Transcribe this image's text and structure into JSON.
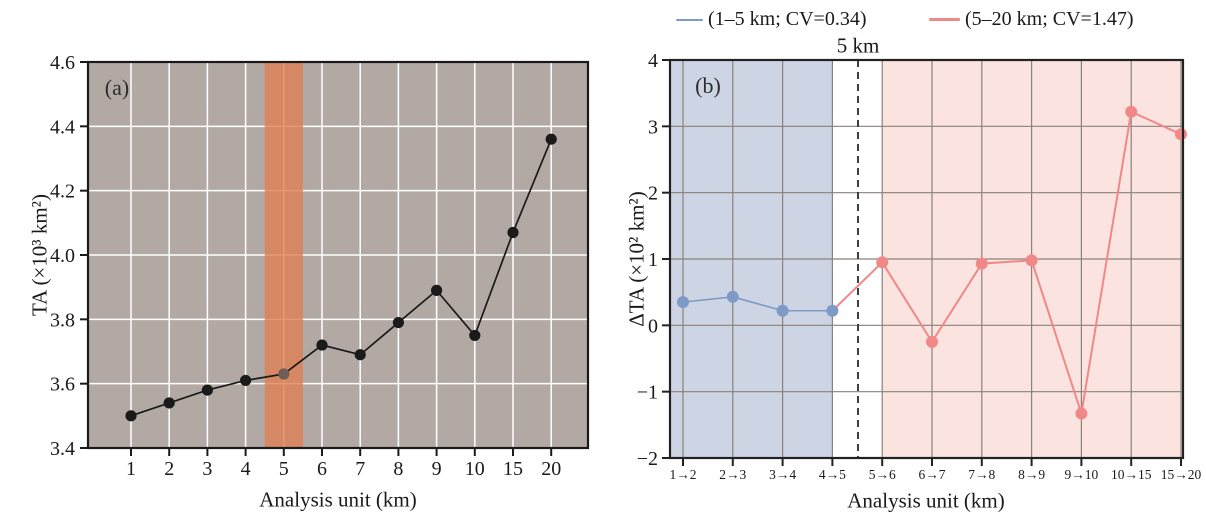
{
  "figure_caption": "",
  "chart_data": [
    {
      "id": "a",
      "type": "line",
      "panel_label": "(a)",
      "xlabel": "Analysis unit (km)",
      "ylabel": "TA (×10³ km²)",
      "categories": [
        "1",
        "2",
        "3",
        "4",
        "5",
        "6",
        "7",
        "8",
        "9",
        "10",
        "15",
        "20"
      ],
      "values": [
        3.5,
        3.54,
        3.58,
        3.61,
        3.63,
        3.72,
        3.69,
        3.79,
        3.89,
        3.75,
        4.07,
        4.36
      ],
      "ylim": [
        3.4,
        4.6
      ],
      "ytick_labels": [
        "3.4",
        "3.6",
        "3.8",
        "4.0",
        "4.2",
        "4.4",
        "4.6"
      ],
      "ytick_values": [
        3.4,
        3.6,
        3.8,
        4.0,
        4.2,
        4.4,
        4.6
      ],
      "grid": "on",
      "highlight_band_category": "5",
      "colors": {
        "background": "#b3a9a4",
        "grid": "#ffffff",
        "band": "#dd7f52",
        "line": "#1a1a1a",
        "band_point": "#6e5e55"
      }
    },
    {
      "id": "b",
      "type": "line",
      "panel_label": "(b)",
      "annotation": "5 km",
      "xlabel": "Analysis unit (km)",
      "ylabel": "ΔTA (×10² km²)",
      "categories": [
        "1→2",
        "2→3",
        "3→4",
        "4→5",
        "5→6",
        "6→7",
        "7→8",
        "8→9",
        "9→10",
        "10→15",
        "15→20"
      ],
      "series": [
        {
          "name": "(1–5 km; CV=0.34)",
          "color": "#7e9ac6",
          "categories_span": [
            "1→2",
            "4→5"
          ],
          "values": [
            0.35,
            0.43,
            0.22,
            0.22
          ]
        },
        {
          "name": "(5–20 km; CV=1.47)",
          "color": "#f18888",
          "categories_span": [
            "5→6",
            "15→20"
          ],
          "values": [
            0.95,
            -0.25,
            0.93,
            0.98,
            -1.33,
            3.22,
            2.88
          ]
        }
      ],
      "ylim": [
        -2,
        4
      ],
      "ytick_labels": [
        "−2",
        "−1",
        "0",
        "1",
        "2",
        "3",
        "4"
      ],
      "ytick_values": [
        -2,
        -1,
        0,
        1,
        2,
        3,
        4
      ],
      "grid": "on",
      "legend_position": "top",
      "colors": {
        "region_blue": "#cdd4e3",
        "region_pink": "#fbe3e0",
        "grid": "#8a817b",
        "dashed_line": "#3f3f3f"
      }
    }
  ]
}
